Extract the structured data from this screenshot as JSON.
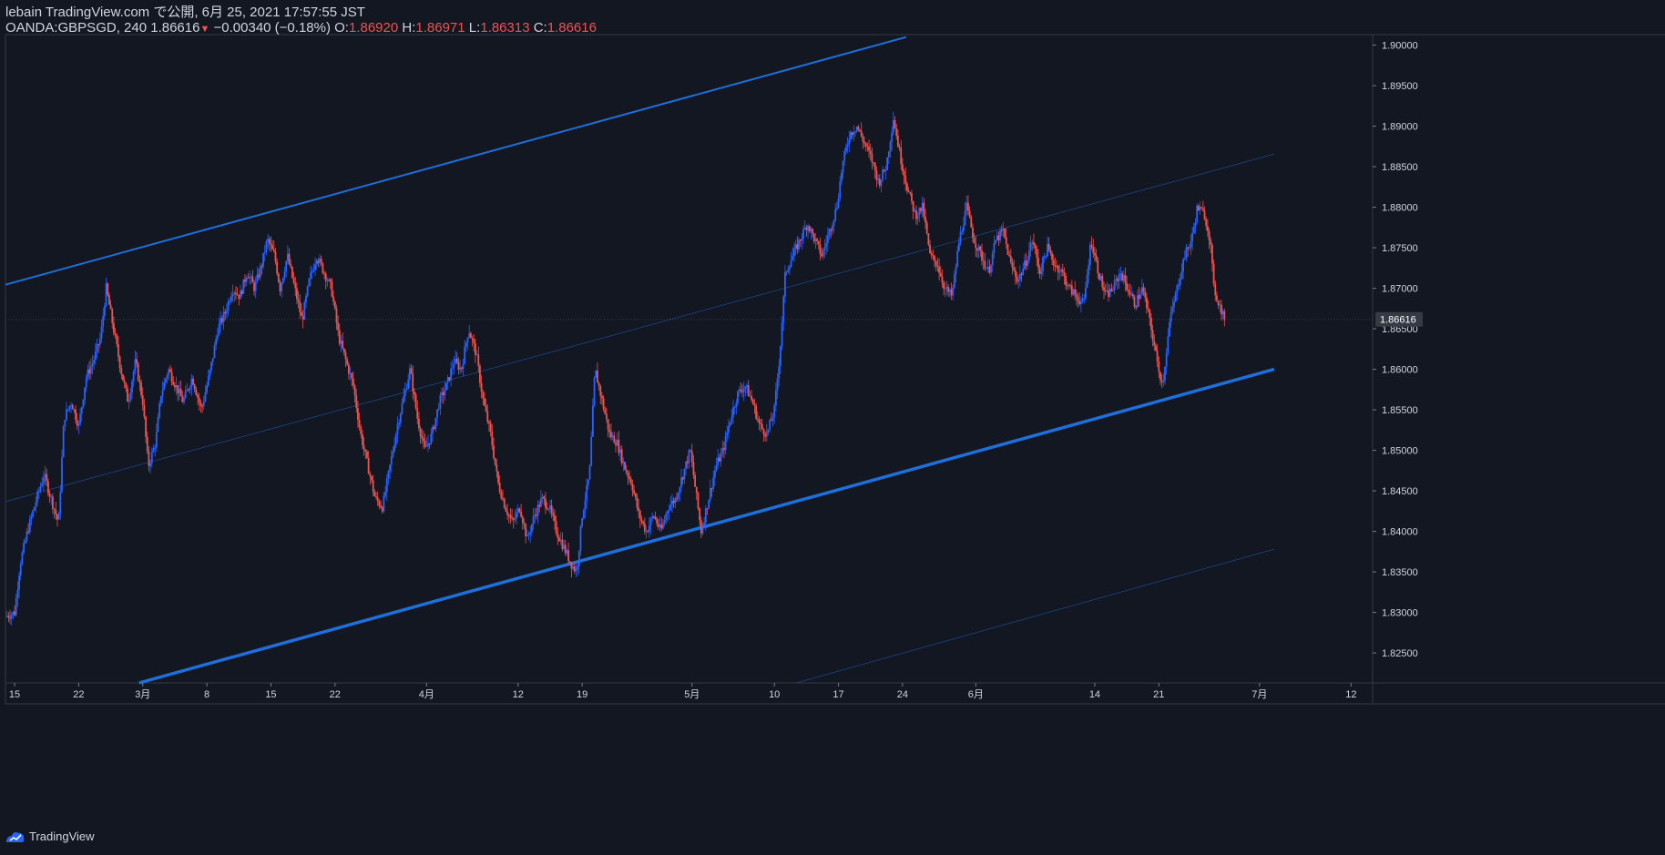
{
  "header": {
    "published": "lebain TradingView.com で公開, 6月 25, 2021 17:57:55 JST",
    "symbol": "OANDA:GBPSGD, 240",
    "last": "1.86616",
    "change": "−0.00340 (−0.18%)",
    "o_label": "O:",
    "o_value": "1.86920",
    "h_label": "H:",
    "h_value": "1.86971",
    "l_label": "L:",
    "l_value": "1.86313",
    "c_label": "C:",
    "c_value": "1.86616"
  },
  "brand": {
    "label": "TradingView",
    "icon": "tradingview-logo-icon"
  },
  "colors": {
    "background": "#131722",
    "up": "#2962ff",
    "down": "#ef5350",
    "line": "#1e6fd9",
    "text": "#d1d4dc"
  },
  "chart_data": {
    "type": "candlestick",
    "symbol": "OANDA:GBPSGD",
    "timeframe": "240",
    "ylim": [
      1.8213,
      1.9013
    ],
    "y_ticks": [
      "1.90000",
      "1.89500",
      "1.89000",
      "1.88500",
      "1.88000",
      "1.87500",
      "1.87000",
      "1.86500",
      "1.86000",
      "1.85500",
      "1.85000",
      "1.84500",
      "1.84000",
      "1.83500",
      "1.83000",
      "1.82500"
    ],
    "last_price_label": "1.86616",
    "last_price": 1.86616,
    "x_ticks": [
      {
        "label": "15",
        "t": 1
      },
      {
        "label": "22",
        "t": 8
      },
      {
        "label": "3月",
        "t": 15
      },
      {
        "label": "8",
        "t": 22
      },
      {
        "label": "15",
        "t": 29
      },
      {
        "label": "22",
        "t": 36
      },
      {
        "label": "4月",
        "t": 46
      },
      {
        "label": "12",
        "t": 56
      },
      {
        "label": "19",
        "t": 63
      },
      {
        "label": "5月",
        "t": 75
      },
      {
        "label": "10",
        "t": 84
      },
      {
        "label": "17",
        "t": 91
      },
      {
        "label": "24",
        "t": 98
      },
      {
        "label": "6月",
        "t": 106
      },
      {
        "label": "14",
        "t": 119
      },
      {
        "label": "21",
        "t": 126
      },
      {
        "label": "7月",
        "t": 137
      },
      {
        "label": "12",
        "t": 147
      }
    ],
    "price_path": [
      [
        0,
        1.8295
      ],
      [
        1,
        1.83
      ],
      [
        1.6,
        1.836
      ],
      [
        2.4,
        1.84
      ],
      [
        3.4,
        1.844
      ],
      [
        4.2,
        1.847
      ],
      [
        5,
        1.844
      ],
      [
        5.8,
        1.841
      ],
      [
        6.4,
        1.854
      ],
      [
        7.2,
        1.856
      ],
      [
        8,
        1.853
      ],
      [
        8.8,
        1.859
      ],
      [
        9.6,
        1.861
      ],
      [
        10.4,
        1.864
      ],
      [
        11.0,
        1.87
      ],
      [
        11.8,
        1.865
      ],
      [
        12.6,
        1.86
      ],
      [
        13.4,
        1.856
      ],
      [
        14.2,
        1.861
      ],
      [
        15,
        1.856
      ],
      [
        15.6,
        1.848
      ],
      [
        16.4,
        1.851
      ],
      [
        17,
        1.857
      ],
      [
        17.8,
        1.86
      ],
      [
        18.6,
        1.858
      ],
      [
        19.4,
        1.856
      ],
      [
        20.4,
        1.859
      ],
      [
        21.4,
        1.855
      ],
      [
        22.4,
        1.86
      ],
      [
        23.2,
        1.865
      ],
      [
        24,
        1.867
      ],
      [
        24.8,
        1.87
      ],
      [
        25.6,
        1.869
      ],
      [
        26.4,
        1.872
      ],
      [
        27.2,
        1.87
      ],
      [
        28,
        1.873
      ],
      [
        28.6,
        1.876
      ],
      [
        29.4,
        1.874
      ],
      [
        30,
        1.87
      ],
      [
        30.8,
        1.874
      ],
      [
        31.6,
        1.87
      ],
      [
        32.4,
        1.866
      ],
      [
        33.2,
        1.871
      ],
      [
        34,
        1.874
      ],
      [
        34.8,
        1.872
      ],
      [
        35.6,
        1.87
      ],
      [
        36.4,
        1.864
      ],
      [
        37.2,
        1.861
      ],
      [
        38,
        1.858
      ],
      [
        38.8,
        1.852
      ],
      [
        39.6,
        1.848
      ],
      [
        40.4,
        1.844
      ],
      [
        41.2,
        1.843
      ],
      [
        42,
        1.848
      ],
      [
        42.8,
        1.853
      ],
      [
        43.4,
        1.856
      ],
      [
        44.2,
        1.86
      ],
      [
        45,
        1.854
      ],
      [
        45.8,
        1.85
      ],
      [
        46.6,
        1.852
      ],
      [
        47.4,
        1.856
      ],
      [
        48.2,
        1.858
      ],
      [
        49,
        1.861
      ],
      [
        49.8,
        1.86
      ],
      [
        50.6,
        1.865
      ],
      [
        51.4,
        1.862
      ],
      [
        52.2,
        1.856
      ],
      [
        53,
        1.852
      ],
      [
        53.8,
        1.846
      ],
      [
        54.6,
        1.843
      ],
      [
        55.4,
        1.841
      ],
      [
        56.2,
        1.843
      ],
      [
        57,
        1.839
      ],
      [
        57.8,
        1.842
      ],
      [
        58.6,
        1.844
      ],
      [
        59.4,
        1.843
      ],
      [
        60.2,
        1.84
      ],
      [
        61,
        1.838
      ],
      [
        61.8,
        1.836
      ],
      [
        62.4,
        1.835
      ],
      [
        63,
        1.842
      ],
      [
        63.8,
        1.847
      ],
      [
        64.4,
        1.86
      ],
      [
        65.2,
        1.856
      ],
      [
        66,
        1.852
      ],
      [
        66.8,
        1.851
      ],
      [
        67.6,
        1.848
      ],
      [
        68.4,
        1.846
      ],
      [
        69.2,
        1.842
      ],
      [
        70,
        1.84
      ],
      [
        70.8,
        1.842
      ],
      [
        71.6,
        1.84
      ],
      [
        72.4,
        1.843
      ],
      [
        73.2,
        1.844
      ],
      [
        74,
        1.847
      ],
      [
        74.8,
        1.85
      ],
      [
        75.4,
        1.845
      ],
      [
        76,
        1.84
      ],
      [
        76.8,
        1.844
      ],
      [
        77.6,
        1.848
      ],
      [
        78.4,
        1.85
      ],
      [
        79.2,
        1.854
      ],
      [
        80,
        1.857
      ],
      [
        80.8,
        1.858
      ],
      [
        81.6,
        1.856
      ],
      [
        82.4,
        1.853
      ],
      [
        83.2,
        1.852
      ],
      [
        84,
        1.855
      ],
      [
        84.6,
        1.862
      ],
      [
        85.2,
        1.872
      ],
      [
        86,
        1.874
      ],
      [
        86.8,
        1.876
      ],
      [
        87.6,
        1.878
      ],
      [
        88.4,
        1.876
      ],
      [
        89.2,
        1.874
      ],
      [
        90,
        1.877
      ],
      [
        90.8,
        1.88
      ],
      [
        91.4,
        1.885
      ],
      [
        92.2,
        1.889
      ],
      [
        93,
        1.89
      ],
      [
        93.8,
        1.888
      ],
      [
        94.6,
        1.886
      ],
      [
        95.4,
        1.883
      ],
      [
        96.2,
        1.885
      ],
      [
        97,
        1.891
      ],
      [
        97.8,
        1.886
      ],
      [
        98.6,
        1.882
      ],
      [
        99.4,
        1.879
      ],
      [
        100.2,
        1.88
      ],
      [
        101,
        1.874
      ],
      [
        101.8,
        1.873
      ],
      [
        102.6,
        1.87
      ],
      [
        103.4,
        1.869
      ],
      [
        104.2,
        1.876
      ],
      [
        105,
        1.88
      ],
      [
        105.8,
        1.876
      ],
      [
        106.6,
        1.874
      ],
      [
        107.4,
        1.872
      ],
      [
        108.2,
        1.876
      ],
      [
        109,
        1.877
      ],
      [
        109.8,
        1.873
      ],
      [
        110.6,
        1.871
      ],
      [
        111.4,
        1.873
      ],
      [
        112.2,
        1.876
      ],
      [
        113,
        1.872
      ],
      [
        113.8,
        1.875
      ],
      [
        114.6,
        1.873
      ],
      [
        115.4,
        1.872
      ],
      [
        116.2,
        1.87
      ],
      [
        117,
        1.869
      ],
      [
        117.8,
        1.868
      ],
      [
        118.6,
        1.876
      ],
      [
        119.4,
        1.872
      ],
      [
        120.2,
        1.869
      ],
      [
        121,
        1.87
      ],
      [
        121.8,
        1.872
      ],
      [
        122.6,
        1.87
      ],
      [
        123.4,
        1.868
      ],
      [
        124.2,
        1.87
      ],
      [
        125,
        1.866
      ],
      [
        125.8,
        1.861
      ],
      [
        126.4,
        1.858
      ],
      [
        127.2,
        1.866
      ],
      [
        128,
        1.87
      ],
      [
        128.8,
        1.874
      ],
      [
        129.6,
        1.876
      ],
      [
        130.2,
        1.88
      ],
      [
        131,
        1.879
      ],
      [
        131.6,
        1.876
      ],
      [
        132,
        1.87
      ],
      [
        132.6,
        1.868
      ],
      [
        133.2,
        1.8662
      ]
    ],
    "trendlines": [
      {
        "name": "upper-channel",
        "t1": 0,
        "p1": 1.87044,
        "t2": 98.4,
        "p2": 1.901,
        "width": 2
      },
      {
        "name": "lower-channel",
        "t1": 14.6,
        "p1": 1.8213,
        "t2": 138.6,
        "p2": 1.86,
        "width": 3.5
      },
      {
        "name": "mid-channel",
        "t1": 0,
        "p1": 1.84367,
        "t2": 138.6,
        "p2": 1.88656,
        "width": 0.6
      },
      {
        "name": "lower-parallel",
        "t1": 86.4,
        "p1": 1.8213,
        "t2": 138.6,
        "p2": 1.8378,
        "width": 0.6
      }
    ]
  }
}
